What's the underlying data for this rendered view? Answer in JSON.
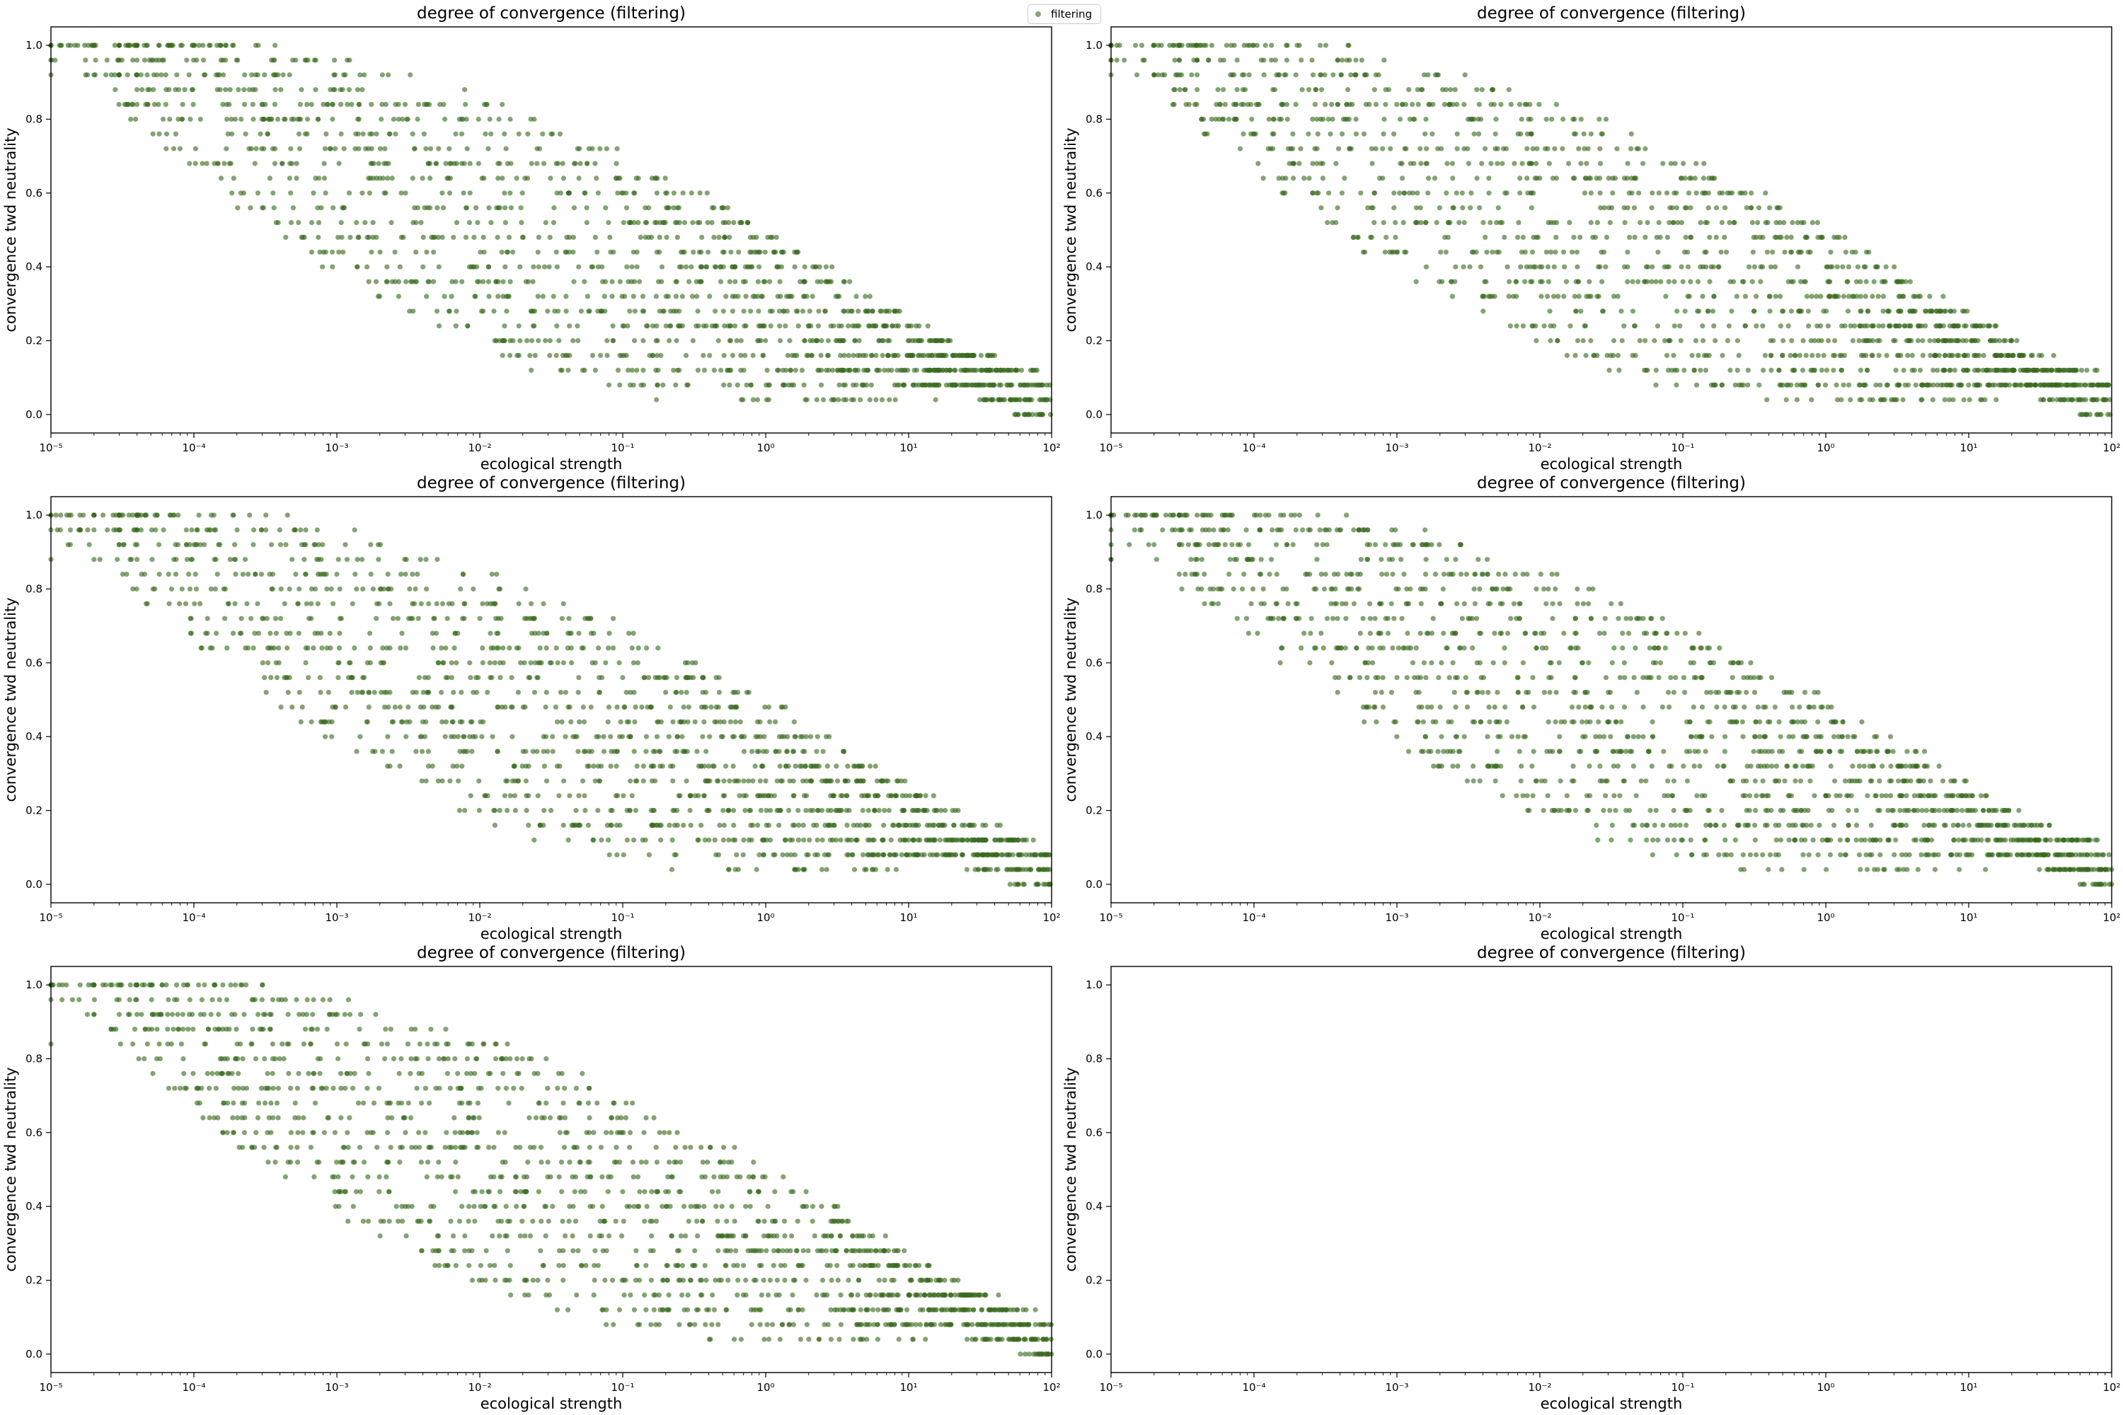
{
  "legend": {
    "label": "filtering",
    "marker_color": "#3a6b1f"
  },
  "chart_data": [
    {
      "type": "scatter",
      "title": "degree of convergence (filtering)",
      "xlabel": "ecological strength",
      "ylabel": "convergence twd neutrality",
      "xscale": "log",
      "xlim": [
        1e-05,
        100
      ],
      "ylim": [
        -0.05,
        1.05
      ],
      "xticks": [
        "10⁻⁵",
        "10⁻⁴",
        "10⁻³",
        "10⁻²",
        "10⁻¹",
        "10⁰",
        "10¹",
        "10²"
      ],
      "yticks": [
        "0.0",
        "0.2",
        "0.4",
        "0.6",
        "0.8",
        "1.0"
      ],
      "series": [
        {
          "name": "filtering",
          "color": "#3a6b1f",
          "seed": 11,
          "n_points": 1700,
          "y_step": 0.04,
          "trend": "high convergence (0.8-1.0) at low strength, decreasing toward 0.0-0.3 at strength 1e-1 to 1e2"
        }
      ]
    },
    {
      "type": "scatter",
      "title": "degree of convergence (filtering)",
      "xlabel": "ecological strength",
      "ylabel": "convergence twd neutrality",
      "xscale": "log",
      "xlim": [
        1e-05,
        100
      ],
      "ylim": [
        -0.05,
        1.05
      ],
      "xticks": [
        "10⁻⁵",
        "10⁻⁴",
        "10⁻³",
        "10⁻²",
        "10⁻¹",
        "10⁰",
        "10¹",
        "10²"
      ],
      "yticks": [
        "0.0",
        "0.2",
        "0.4",
        "0.6",
        "0.8",
        "1.0"
      ],
      "series": [
        {
          "name": "filtering",
          "color": "#3a6b1f",
          "seed": 23,
          "n_points": 1700,
          "y_step": 0.04,
          "trend": "high convergence (0.8-1.0) at low strength, decreasing toward 0.0-0.3 at strength 1e-1 to 1e2"
        }
      ]
    },
    {
      "type": "scatter",
      "title": "degree of convergence (filtering)",
      "xlabel": "ecological strength",
      "ylabel": "convergence twd neutrality",
      "xscale": "log",
      "xlim": [
        1e-05,
        100
      ],
      "ylim": [
        -0.05,
        1.05
      ],
      "xticks": [
        "10⁻⁵",
        "10⁻⁴",
        "10⁻³",
        "10⁻²",
        "10⁻¹",
        "10⁰",
        "10¹",
        "10²"
      ],
      "yticks": [
        "0.0",
        "0.2",
        "0.4",
        "0.6",
        "0.8",
        "1.0"
      ],
      "series": [
        {
          "name": "filtering",
          "color": "#3a6b1f",
          "seed": 37,
          "n_points": 1650,
          "y_step": 0.04,
          "trend": "high convergence (0.8-1.0) at low strength, decreasing toward 0.0-0.3 at strength 1e-1 to 1e2"
        }
      ]
    },
    {
      "type": "scatter",
      "title": "degree of convergence (filtering)",
      "xlabel": "ecological strength",
      "ylabel": "convergence twd neutrality",
      "xscale": "log",
      "xlim": [
        1e-05,
        100
      ],
      "ylim": [
        -0.05,
        1.05
      ],
      "xticks": [
        "10⁻⁵",
        "10⁻⁴",
        "10⁻³",
        "10⁻²",
        "10⁻¹",
        "10⁰",
        "10¹",
        "10²"
      ],
      "yticks": [
        "0.0",
        "0.2",
        "0.4",
        "0.6",
        "0.8",
        "1.0"
      ],
      "series": [
        {
          "name": "filtering",
          "color": "#3a6b1f",
          "seed": 41,
          "n_points": 1650,
          "y_step": 0.04,
          "trend": "high convergence (0.8-1.0) at low strength, decreasing toward 0.0-0.3 at strength 1e-1 to 1e2"
        }
      ]
    },
    {
      "type": "scatter",
      "title": "degree of convergence (filtering)",
      "xlabel": "ecological strength",
      "ylabel": "convergence twd neutrality",
      "xscale": "log",
      "xlim": [
        1e-05,
        100
      ],
      "ylim": [
        -0.05,
        1.05
      ],
      "xticks": [
        "10⁻⁵",
        "10⁻⁴",
        "10⁻³",
        "10⁻²",
        "10⁻¹",
        "10⁰",
        "10¹",
        "10²"
      ],
      "yticks": [
        "0.0",
        "0.2",
        "0.4",
        "0.6",
        "0.8",
        "1.0"
      ],
      "series": [
        {
          "name": "filtering",
          "color": "#3a6b1f",
          "seed": 53,
          "n_points": 1600,
          "y_step": 0.04,
          "trend": "high convergence (0.8-1.0) at low strength, decreasing toward 0.0-0.3 at strength 1e-1 to 1e2"
        }
      ]
    },
    {
      "type": "scatter",
      "title": "degree of convergence (filtering)",
      "xlabel": "ecological strength",
      "ylabel": "convergence twd neutrality",
      "xscale": "log",
      "xlim": [
        1e-05,
        100
      ],
      "ylim": [
        -0.05,
        1.05
      ],
      "xticks": [
        "10⁻⁵",
        "10⁻⁴",
        "10⁻³",
        "10⁻²",
        "10⁻¹",
        "10⁰",
        "10¹",
        "10²"
      ],
      "yticks": [
        "0.0",
        "0.2",
        "0.4",
        "0.6",
        "0.8",
        "1.0"
      ],
      "series": [
        {
          "name": "filtering",
          "color": "#3a6b1f",
          "seed": 0,
          "n_points": 0,
          "y_step": 0.04,
          "trend": "empty"
        }
      ]
    }
  ]
}
